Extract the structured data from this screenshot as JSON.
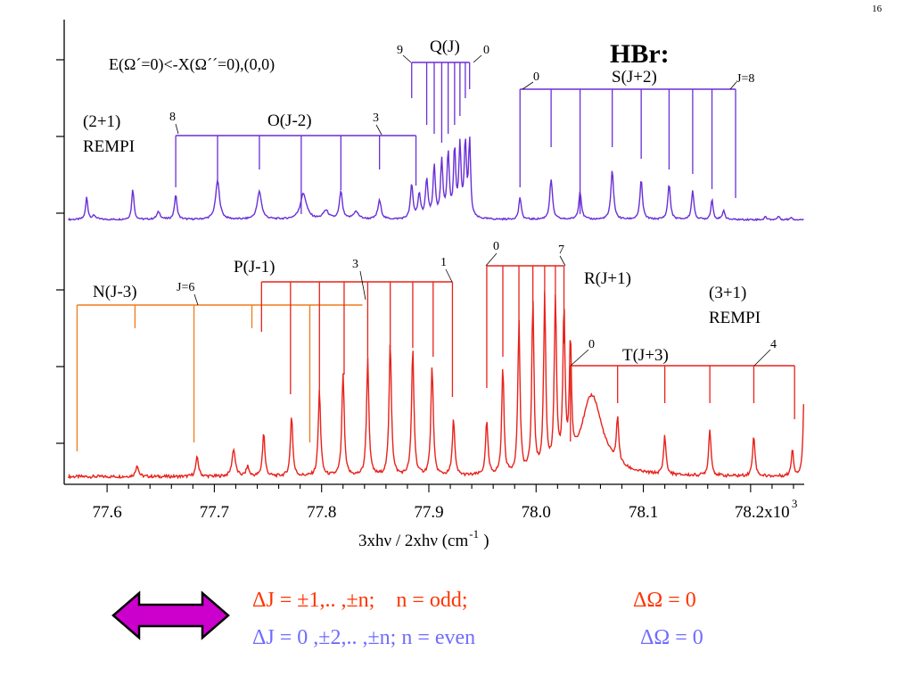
{
  "slide_number": "16",
  "chart_data": {
    "type": "line",
    "title": "HBr:",
    "xlabel": "3xhν / 2xhν (cm",
    "xlabel_sup": "-1",
    "xlabel_close": ")",
    "xlim": [
      77.56,
      78.25
    ],
    "x_ticks": [
      {
        "v": 77.6,
        "label": "77.6"
      },
      {
        "v": 77.7,
        "label": "77.7"
      },
      {
        "v": 77.8,
        "label": "77.8"
      },
      {
        "v": 77.9,
        "label": "77.9"
      },
      {
        "v": 78.0,
        "label": "78.0"
      },
      {
        "v": 78.1,
        "label": "78.1"
      },
      {
        "v": 78.2,
        "label": "78.2x10"
      }
    ],
    "x_multiplier_exp": "3",
    "transition_label": "E(Ω´=0)<-X(Ω´´=0),(0,0)",
    "series": [
      {
        "name": "(2+1) REMPI",
        "name_lines": [
          "(2+1)",
          "REMPI"
        ],
        "color": "#6a2fd6",
        "baseline": 0.08,
        "peaks": [
          {
            "x": 77.581,
            "h": 0.42,
            "w": 0.0012
          },
          {
            "x": 77.588,
            "h": 0.07,
            "w": 0.002
          },
          {
            "x": 77.624,
            "h": 0.58,
            "w": 0.0012
          },
          {
            "x": 77.648,
            "h": 0.14,
            "w": 0.002
          },
          {
            "x": 77.664,
            "h": 0.46,
            "w": 0.0014
          },
          {
            "x": 77.703,
            "h": 0.72,
            "w": 0.0022
          },
          {
            "x": 77.742,
            "h": 0.52,
            "w": 0.0024
          },
          {
            "x": 77.783,
            "h": 0.48,
            "w": 0.0035
          },
          {
            "x": 77.804,
            "h": 0.16,
            "w": 0.003
          },
          {
            "x": 77.818,
            "h": 0.52,
            "w": 0.0016
          },
          {
            "x": 77.832,
            "h": 0.14,
            "w": 0.003
          },
          {
            "x": 77.854,
            "h": 0.35,
            "w": 0.0018
          },
          {
            "x": 77.884,
            "h": 0.64,
            "w": 0.0014
          },
          {
            "x": 77.891,
            "h": 0.44,
            "w": 0.0015
          },
          {
            "x": 77.898,
            "h": 0.72,
            "w": 0.0014
          },
          {
            "x": 77.905,
            "h": 0.95,
            "w": 0.0013
          },
          {
            "x": 77.912,
            "h": 1.05,
            "w": 0.0013
          },
          {
            "x": 77.918,
            "h": 1.18,
            "w": 0.0013
          },
          {
            "x": 77.924,
            "h": 1.25,
            "w": 0.0012
          },
          {
            "x": 77.929,
            "h": 1.32,
            "w": 0.0012
          },
          {
            "x": 77.934,
            "h": 1.38,
            "w": 0.0012
          },
          {
            "x": 77.938,
            "h": 1.42,
            "w": 0.0011
          },
          {
            "x": 77.985,
            "h": 0.42,
            "w": 0.0013
          },
          {
            "x": 78.014,
            "h": 0.75,
            "w": 0.0015
          },
          {
            "x": 78.041,
            "h": 0.52,
            "w": 0.0015
          },
          {
            "x": 78.071,
            "h": 0.92,
            "w": 0.0015
          },
          {
            "x": 78.098,
            "h": 0.74,
            "w": 0.0014
          },
          {
            "x": 78.124,
            "h": 0.66,
            "w": 0.0014
          },
          {
            "x": 78.146,
            "h": 0.55,
            "w": 0.0013
          },
          {
            "x": 78.164,
            "h": 0.38,
            "w": 0.0012
          },
          {
            "x": 78.175,
            "h": 0.18,
            "w": 0.0012
          },
          {
            "x": 78.214,
            "h": 0.06,
            "w": 0.001
          },
          {
            "x": 78.226,
            "h": 0.07,
            "w": 0.001
          },
          {
            "x": 78.238,
            "h": 0.05,
            "w": 0.001
          }
        ],
        "branches": [
          {
            "name": "O(J-2)",
            "lines": [
              77.664,
              77.703,
              77.742,
              77.781,
              77.818,
              77.854,
              77.888
            ],
            "first": "8",
            "last": "3"
          },
          {
            "name": "Q(J)",
            "lines": [
              77.884,
              77.898,
              77.905,
              77.912,
              77.918,
              77.924,
              77.929,
              77.934,
              77.938
            ],
            "first": "9",
            "last": "0"
          },
          {
            "name": "S(J+2)",
            "lines": [
              77.985,
              78.014,
              78.041,
              78.071,
              78.098,
              78.124,
              78.146,
              78.164,
              78.186
            ],
            "first": "0",
            "last": "J=8"
          }
        ]
      },
      {
        "name": "(3+1) REMPI",
        "name_lines": [
          "(3+1)",
          "REMPI"
        ],
        "color": "#e8221b",
        "baseline": 0.06,
        "peaks": [
          {
            "x": 77.628,
            "h": 0.12,
            "w": 0.0015
          },
          {
            "x": 77.684,
            "h": 0.2,
            "w": 0.0015
          },
          {
            "x": 77.718,
            "h": 0.28,
            "w": 0.0018
          },
          {
            "x": 77.731,
            "h": 0.1,
            "w": 0.0015
          },
          {
            "x": 77.746,
            "h": 0.45,
            "w": 0.0013
          },
          {
            "x": 77.772,
            "h": 0.62,
            "w": 0.0013
          },
          {
            "x": 77.798,
            "h": 0.88,
            "w": 0.0013
          },
          {
            "x": 77.82,
            "h": 1.05,
            "w": 0.0013
          },
          {
            "x": 77.843,
            "h": 1.2,
            "w": 0.0013
          },
          {
            "x": 77.864,
            "h": 1.38,
            "w": 0.0013
          },
          {
            "x": 77.885,
            "h": 1.3,
            "w": 0.0013
          },
          {
            "x": 77.903,
            "h": 1.12,
            "w": 0.0013
          },
          {
            "x": 77.923,
            "h": 0.58,
            "w": 0.0013
          },
          {
            "x": 77.954,
            "h": 0.55,
            "w": 0.0013
          },
          {
            "x": 77.969,
            "h": 1.1,
            "w": 0.0012
          },
          {
            "x": 77.984,
            "h": 1.55,
            "w": 0.0012
          },
          {
            "x": 77.997,
            "h": 1.75,
            "w": 0.0012
          },
          {
            "x": 78.008,
            "h": 1.78,
            "w": 0.0012
          },
          {
            "x": 78.018,
            "h": 1.72,
            "w": 0.0012
          },
          {
            "x": 78.026,
            "h": 1.55,
            "w": 0.0012
          },
          {
            "x": 78.032,
            "h": 1.2,
            "w": 0.0011
          },
          {
            "x": 78.052,
            "h": 0.82,
            "w": 0.012
          },
          {
            "x": 78.076,
            "h": 0.45,
            "w": 0.0013
          },
          {
            "x": 78.12,
            "h": 0.4,
            "w": 0.0013
          },
          {
            "x": 78.162,
            "h": 0.48,
            "w": 0.0013
          },
          {
            "x": 78.203,
            "h": 0.42,
            "w": 0.0013
          },
          {
            "x": 78.239,
            "h": 0.28,
            "w": 0.0012
          },
          {
            "x": 78.25,
            "h": 0.9,
            "w": 0.0012
          }
        ],
        "branches": [
          {
            "name": "N(J-3)",
            "lines": [
              77.572,
              77.626,
              77.681,
              77.735,
              77.789,
              77.838
            ],
            "first": "",
            "last": "J=6",
            "color": "#f07a1c"
          },
          {
            "name": "P(J-1)",
            "lines": [
              77.744,
              77.771,
              77.798,
              77.821,
              77.843,
              77.864,
              77.885,
              77.904,
              77.922
            ],
            "first": "",
            "last": "3",
            "last2": "1"
          },
          {
            "name": "R(J+1)",
            "lines": [
              77.954,
              77.969,
              77.984,
              77.997,
              78.008,
              78.018,
              78.026
            ],
            "first": "0",
            "last": "7"
          },
          {
            "name": "T(J+3)",
            "lines": [
              78.032,
              78.076,
              78.12,
              78.162,
              78.203,
              78.241
            ],
            "first": "0",
            "last": "4"
          }
        ]
      }
    ]
  },
  "rules": [
    {
      "line": "ΔJ = ±1,.. ,±n;    n = odd;",
      "condition": "ΔΩ = 0",
      "color": "#ff3300"
    },
    {
      "line": "ΔJ = 0 ,±2,.. ,±n; n = even",
      "condition": "ΔΩ = 0",
      "color": "#6f6cff"
    }
  ],
  "arrow_color": "#cc00cc"
}
